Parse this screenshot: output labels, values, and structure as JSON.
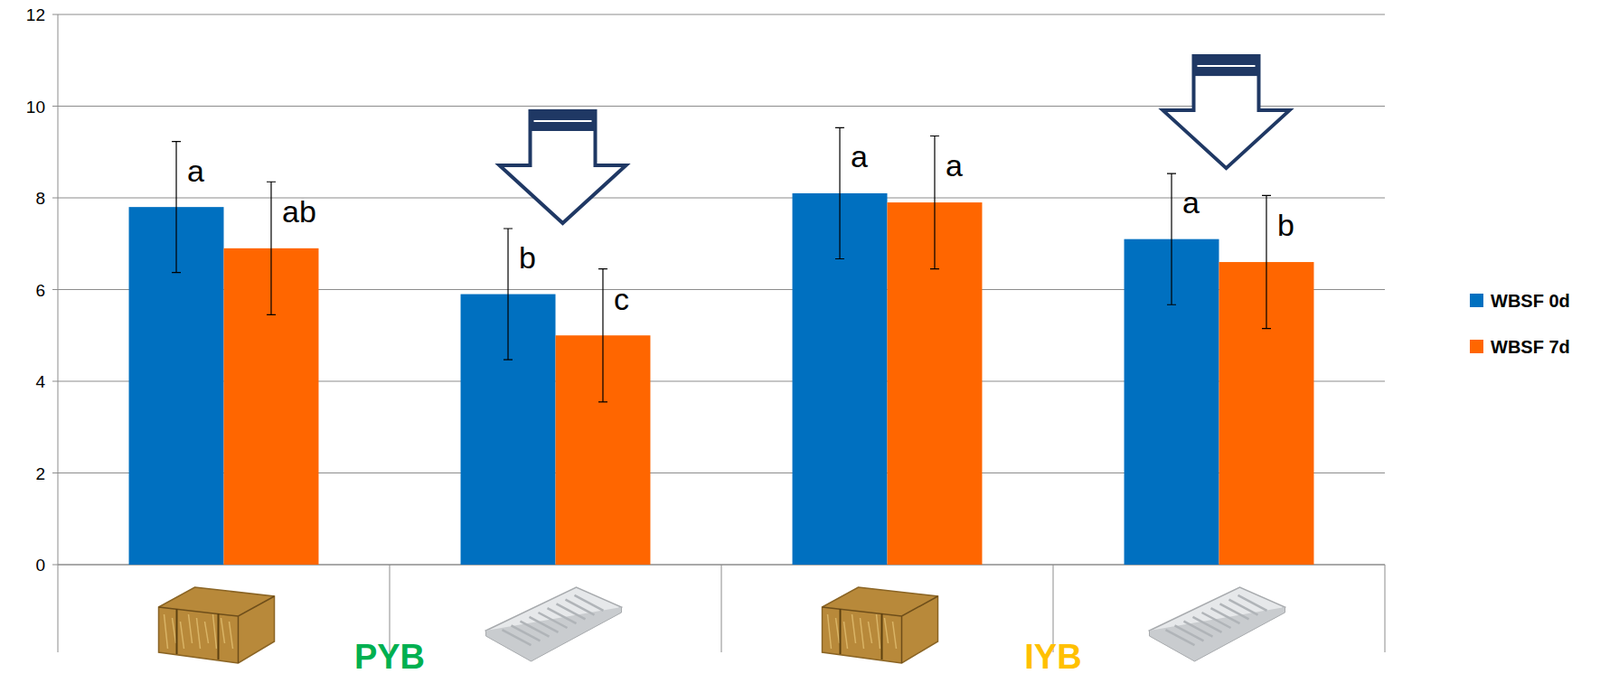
{
  "chart_data": {
    "type": "bar",
    "categories": [
      null,
      null,
      null,
      null
    ],
    "groups": [
      {
        "label": "PYB",
        "color": "#00b050",
        "size": 2
      },
      {
        "label": "IYB",
        "color": "#ffc000",
        "size": 2
      }
    ],
    "series": [
      {
        "name": "WBSF 0d",
        "color": "#0070c0",
        "values": [
          7.8,
          5.9,
          8.1,
          7.1
        ],
        "errors": [
          1.43,
          1.43,
          1.43,
          1.43
        ],
        "annotations": [
          "a",
          "b",
          "a",
          "a"
        ]
      },
      {
        "name": "WBSF 7d",
        "color": "#ff6600",
        "values": [
          6.9,
          5.0,
          7.9,
          6.6
        ],
        "errors": [
          1.45,
          1.45,
          1.45,
          1.45
        ],
        "annotations": [
          "ab",
          "c",
          "a",
          "b"
        ]
      }
    ],
    "ylim": [
      0,
      12
    ],
    "yticks": [
      0,
      2,
      4,
      6,
      8,
      10,
      12
    ],
    "grid": true,
    "legend": "right"
  }
}
